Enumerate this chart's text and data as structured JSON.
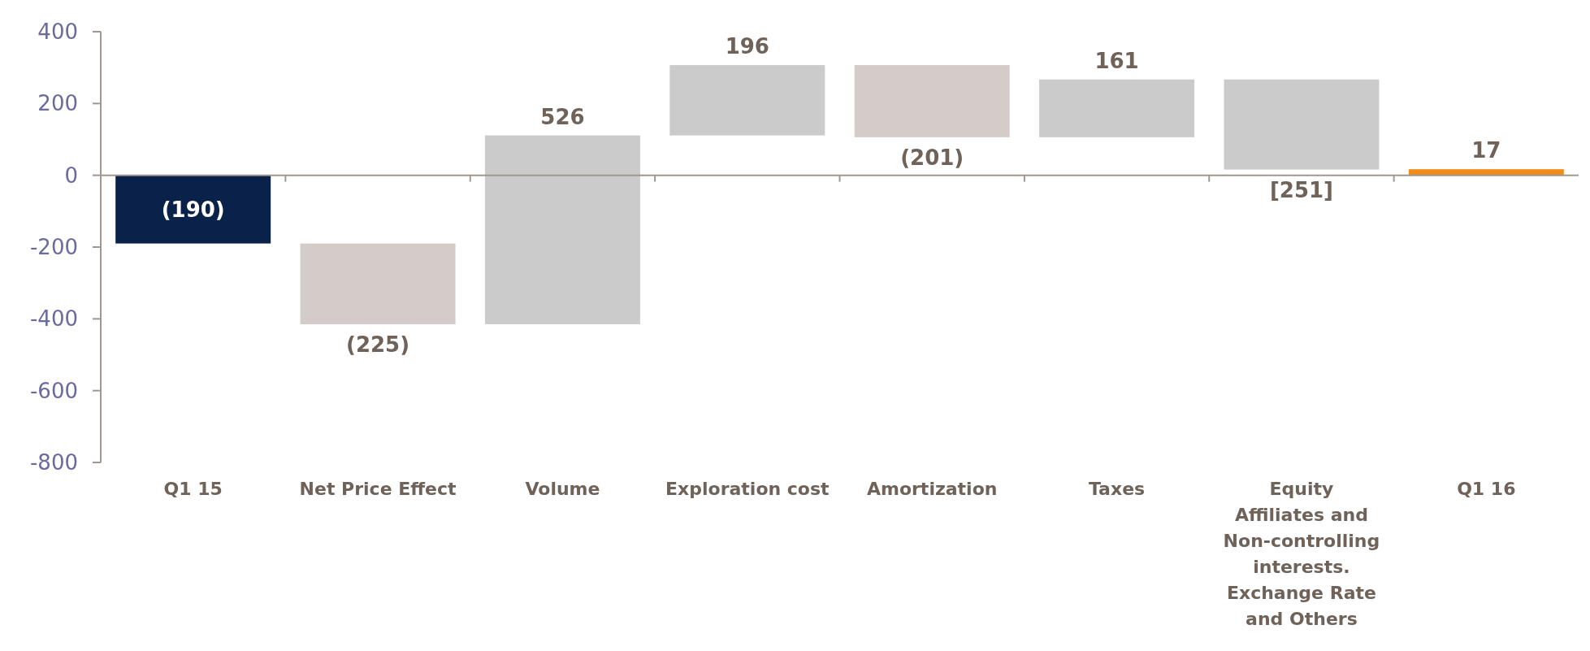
{
  "chart_data": {
    "type": "bar",
    "categories": [
      "Q1 15",
      "Net Price Effect",
      "Volume",
      "Exploration cost",
      "Amortization",
      "Taxes",
      "Equity Affiliates and Non-controlling interests. Exchange Rate and Others",
      "Q1 16"
    ],
    "values": [
      -190,
      -225,
      526,
      196,
      -201,
      161,
      -251,
      17
    ],
    "base": [
      0,
      -190,
      -415,
      111,
      307,
      106,
      267,
      0
    ],
    "colors": [
      "#0a2249",
      "#d3ccc8",
      "#cbcbcb",
      "#cbcbcb",
      "#d3ccc8",
      "#cbcbcb",
      "#cbcbcb",
      "#f28c1a"
    ],
    "value_labels": [
      "(190)",
      "(225)",
      "526",
      "196",
      "(201)",
      "161",
      "[251]",
      "17"
    ],
    "ylim": [
      -800,
      400
    ],
    "yticks": [
      -800,
      -600,
      -400,
      -200,
      0,
      200,
      400
    ]
  }
}
